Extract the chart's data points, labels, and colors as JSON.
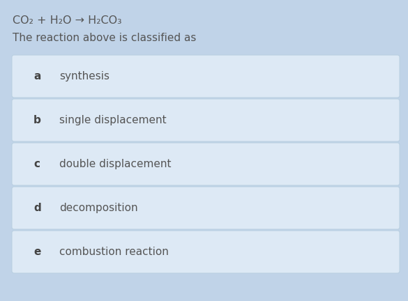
{
  "background_color": "#c0d3e8",
  "equation_line": "CO₂ + H₂O → H₂CO₃",
  "subtitle": "The reaction above is classified as",
  "options": [
    {
      "label": "a",
      "text": "synthesis"
    },
    {
      "label": "b",
      "text": "single displacement"
    },
    {
      "label": "c",
      "text": "double displacement"
    },
    {
      "label": "d",
      "text": "decomposition"
    },
    {
      "label": "e",
      "text": "combustion reaction"
    }
  ],
  "box_color": "#dde9f5",
  "box_edge_color": "#b8cfe0",
  "text_color": "#555555",
  "label_color": "#444444",
  "equation_fontsize": 11.5,
  "subtitle_fontsize": 11,
  "option_fontsize": 11,
  "label_fontsize": 11
}
